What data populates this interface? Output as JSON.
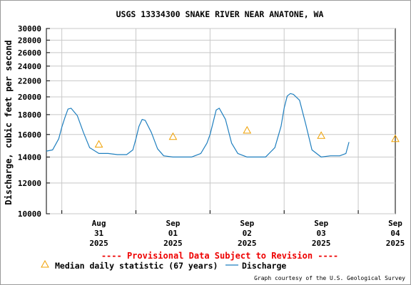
{
  "chart_data": {
    "type": "line",
    "title": "USGS 13334300 SNAKE RIVER NEAR ANATONE, WA",
    "ylabel": "Discharge, cubic feet per second",
    "xlabel": "",
    "yscale": "log",
    "ylim": [
      10000,
      30000
    ],
    "xlim": [
      "2025-08-30 19:00",
      "2025-09-04 12:00"
    ],
    "grid": true,
    "y_ticks": [
      "10000",
      "12000",
      "14000",
      "16000",
      "18000",
      "20000",
      "22000",
      "24000",
      "26000",
      "28000",
      "30000"
    ],
    "x_ticks": [
      {
        "month": "Aug",
        "day": "31",
        "year": "2025"
      },
      {
        "month": "Sep",
        "day": "01",
        "year": "2025"
      },
      {
        "month": "Sep",
        "day": "02",
        "year": "2025"
      },
      {
        "month": "Sep",
        "day": "03",
        "year": "2025"
      },
      {
        "month": "Sep",
        "day": "04",
        "year": "2025"
      }
    ],
    "series": [
      {
        "name": "Discharge",
        "color": "#1f7fbf",
        "x": [
          "2025-08-30 19:00",
          "2025-08-30 21:00",
          "2025-08-30 23:00",
          "2025-08-31 00:00",
          "2025-08-31 01:00",
          "2025-08-31 02:00",
          "2025-08-31 03:00",
          "2025-08-31 05:00",
          "2025-08-31 07:00",
          "2025-08-31 09:00",
          "2025-08-31 12:00",
          "2025-08-31 15:00",
          "2025-08-31 18:00",
          "2025-08-31 21:00",
          "2025-08-31 23:00",
          "2025-09-01 00:00",
          "2025-09-01 01:00",
          "2025-09-01 02:00",
          "2025-09-01 03:00",
          "2025-09-01 05:00",
          "2025-09-01 07:00",
          "2025-09-01 09:00",
          "2025-09-01 12:00",
          "2025-09-01 15:00",
          "2025-09-01 18:00",
          "2025-09-01 21:00",
          "2025-09-01 23:00",
          "2025-09-02 00:00",
          "2025-09-02 01:00",
          "2025-09-02 02:00",
          "2025-09-02 03:00",
          "2025-09-02 05:00",
          "2025-09-02 07:00",
          "2025-09-02 09:00",
          "2025-09-02 12:00",
          "2025-09-02 15:00",
          "2025-09-02 18:00",
          "2025-09-02 21:00",
          "2025-09-02 23:00",
          "2025-09-03 00:00",
          "2025-09-03 01:00",
          "2025-09-03 02:00",
          "2025-09-03 03:00",
          "2025-09-03 05:00",
          "2025-09-03 07:00",
          "2025-09-03 09:00",
          "2025-09-03 12:00",
          "2025-09-03 15:00",
          "2025-09-03 18:00",
          "2025-09-03 20:00",
          "2025-09-03 21:00"
        ],
        "y": [
          14500,
          14600,
          15600,
          16700,
          17700,
          18600,
          18700,
          17900,
          16200,
          14800,
          14300,
          14300,
          14200,
          14200,
          14600,
          15600,
          16800,
          17500,
          17400,
          16200,
          14700,
          14100,
          14000,
          14000,
          14000,
          14300,
          15200,
          16000,
          17200,
          18500,
          18700,
          17500,
          15200,
          14300,
          14000,
          14000,
          14000,
          14800,
          16800,
          18700,
          20100,
          20400,
          20300,
          19600,
          17000,
          14600,
          14000,
          14100,
          14100,
          14300,
          15300
        ]
      }
    ],
    "median_points": {
      "name": "Median daily statistic (67 years)",
      "color": "#f0a000",
      "x": [
        "2025-08-31 12:00",
        "2025-09-01 12:00",
        "2025-09-02 12:00",
        "2025-09-03 12:00",
        "2025-09-04 12:00"
      ],
      "y": [
        15100,
        15800,
        16400,
        15900,
        15600
      ]
    }
  },
  "notice": "---- Provisional Data Subject to Revision ----",
  "credit": "Graph courtesy of the U.S. Geological Survey",
  "legend": {
    "median_label": "Median daily statistic (67 years)",
    "discharge_label": "Discharge"
  }
}
